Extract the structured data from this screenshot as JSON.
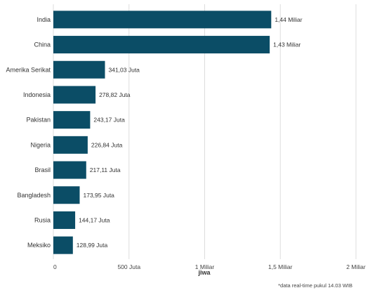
{
  "chart_data": {
    "type": "bar",
    "orientation": "horizontal",
    "categories": [
      "India",
      "China",
      "Amerika Serikat",
      "Indonesia",
      "Pakistan",
      "Nigeria",
      "Brasil",
      "Bangladesh",
      "Rusia",
      "Meksiko"
    ],
    "values": [
      1440000000,
      1430000000,
      341030000,
      278820000,
      243170000,
      226840000,
      217110000,
      173950000,
      144170000,
      128990000
    ],
    "value_labels": [
      "1,44 Miliar",
      "1,43 Miliar",
      "341,03 Juta",
      "278,82 Juta",
      "243,17 Juta",
      "226,84 Juta",
      "217,11 Juta",
      "173,95 Juta",
      "144,17 Juta",
      "128,99 Juta"
    ],
    "xlim": [
      0,
      2000000000
    ],
    "xticks": [
      0,
      500000000,
      1000000000,
      1500000000,
      2000000000
    ],
    "xtick_labels": [
      "0",
      "500 Juta",
      "1 Miliar",
      "1,5 Miliar",
      "2 Miliar"
    ],
    "xlabel": "jiwa",
    "ylabel": "",
    "title": "",
    "grid": true,
    "bar_color": "#0b4d66",
    "footnote": "*data real-time pukul 14.03 WIB"
  }
}
